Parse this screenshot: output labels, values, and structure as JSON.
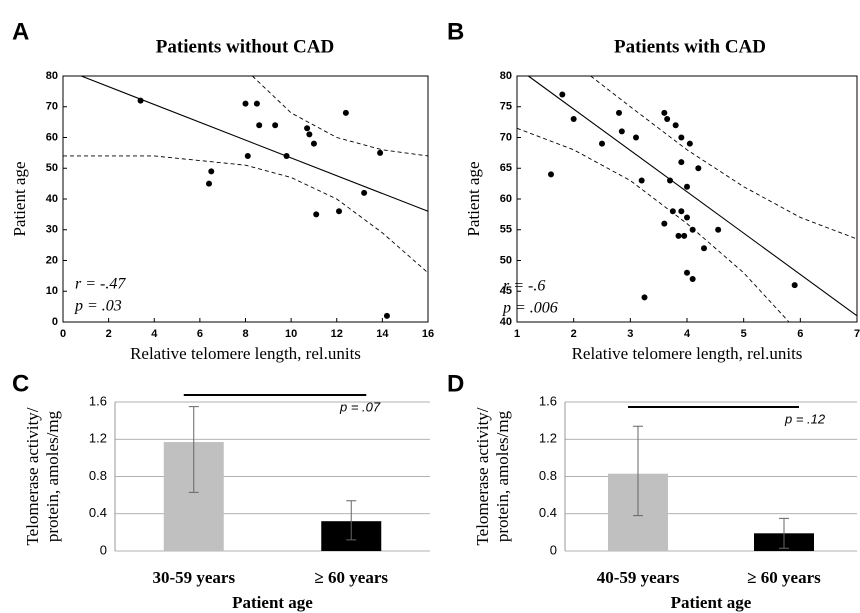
{
  "chart_data": [
    {
      "type": "scatter",
      "panel": "A",
      "title": "Patients without CAD",
      "xlabel": "Relative telomere length, rel.units",
      "ylabel": "Patient age",
      "xlim": [
        0,
        16
      ],
      "xticks": [
        0,
        2,
        4,
        6,
        8,
        10,
        12,
        14,
        16
      ],
      "ylim": [
        0,
        80
      ],
      "yticks": [
        0,
        10,
        20,
        30,
        40,
        50,
        60,
        70,
        80
      ],
      "annotations": [
        "r = -.47",
        "p = .03"
      ],
      "series": [
        {
          "type": "scatter",
          "color": "#000000",
          "x": [
            3.4,
            6.4,
            6.5,
            8.0,
            8.1,
            8.5,
            8.6,
            9.3,
            9.8,
            10.7,
            10.8,
            11.0,
            11.1,
            12.1,
            12.4,
            13.2,
            13.9,
            14.2
          ],
          "values": [
            72,
            45,
            49,
            71,
            54,
            71,
            64,
            64,
            54,
            63,
            61,
            58,
            35,
            36,
            68,
            42,
            55,
            2
          ]
        },
        {
          "type": "line",
          "color": "#000000",
          "dashed": false,
          "x": [
            0.8,
            16
          ],
          "values": [
            80,
            36
          ]
        },
        {
          "type": "line",
          "color": "#000000",
          "dashed": true,
          "x": [
            8.3,
            10,
            12,
            14,
            16
          ],
          "values": [
            80,
            68,
            60,
            56,
            54
          ]
        },
        {
          "type": "line",
          "color": "#000000",
          "dashed": true,
          "x": [
            0,
            4,
            8,
            10,
            12,
            14,
            16
          ],
          "values": [
            54,
            54,
            51,
            47,
            40,
            29,
            16
          ]
        }
      ]
    },
    {
      "type": "scatter",
      "panel": "B",
      "title": "Patients with CAD",
      "xlabel": "Relative telomere length, rel.units",
      "ylabel": "Patient age",
      "xlim": [
        1,
        7
      ],
      "xticks": [
        1,
        2,
        3,
        4,
        5,
        6,
        7
      ],
      "ylim": [
        40,
        80
      ],
      "yticks": [
        40,
        45,
        50,
        55,
        60,
        65,
        70,
        75,
        80
      ],
      "annotations": [
        "r = -.6",
        "p = .006"
      ],
      "series": [
        {
          "type": "scatter",
          "color": "#000000",
          "x": [
            1.6,
            1.8,
            2.0,
            2.5,
            2.8,
            2.85,
            3.1,
            3.2,
            3.25,
            3.6,
            3.6,
            3.65,
            3.7,
            3.75,
            3.8,
            3.85,
            3.9,
            3.9,
            3.95,
            3.9,
            4.0,
            4.0,
            4.0,
            4.05,
            4.1,
            4.1,
            4.2,
            4.3,
            4.55,
            5.9
          ],
          "values": [
            64,
            77,
            73,
            69,
            74,
            71,
            70,
            63,
            44,
            56,
            74,
            73,
            63,
            58,
            72,
            54,
            66,
            58,
            54,
            70,
            57,
            62,
            48,
            69,
            55,
            47,
            65,
            52,
            55,
            46
          ]
        },
        {
          "type": "line",
          "color": "#000000",
          "dashed": false,
          "x": [
            1.2,
            7
          ],
          "values": [
            80,
            41
          ]
        },
        {
          "type": "line",
          "color": "#000000",
          "dashed": true,
          "x": [
            2.3,
            3,
            4,
            5,
            6,
            7
          ],
          "values": [
            80,
            75,
            68,
            62,
            57,
            53.5
          ]
        },
        {
          "type": "line",
          "color": "#000000",
          "dashed": true,
          "x": [
            1,
            2,
            3,
            4,
            5,
            5.8
          ],
          "values": [
            71.5,
            68,
            63,
            56,
            48,
            40
          ]
        }
      ]
    },
    {
      "type": "bar",
      "panel": "C",
      "xlabel": "Patient age",
      "ylabel": [
        "Telomerase activity/",
        "protein,  amoles/mg"
      ],
      "categories": [
        "30-59 years",
        "≥ 60 years"
      ],
      "values": [
        1.17,
        0.32
      ],
      "error_low": [
        0.54,
        0.2
      ],
      "error_high": [
        0.38,
        0.22
      ],
      "colors": [
        "#c0c0c0",
        "#000000"
      ],
      "ylim": [
        0,
        1.6
      ],
      "yticks": [
        0,
        0.4,
        0.8,
        1.2,
        1.6
      ],
      "grid": true,
      "bracket_label": "p = .07"
    },
    {
      "type": "bar",
      "panel": "D",
      "xlabel": "Patient age",
      "ylabel": [
        "Telomerase activity/",
        "protein,  amoles/mg"
      ],
      "categories": [
        "40-59 years",
        "≥ 60 years"
      ],
      "values": [
        0.83,
        0.19
      ],
      "error_low": [
        0.45,
        0.16
      ],
      "error_high": [
        0.51,
        0.16
      ],
      "colors": [
        "#c0c0c0",
        "#000000"
      ],
      "ylim": [
        0,
        1.6
      ],
      "yticks": [
        0,
        0.4,
        0.8,
        1.2,
        1.6
      ],
      "grid": true,
      "bracket_label": "p = .12"
    }
  ]
}
